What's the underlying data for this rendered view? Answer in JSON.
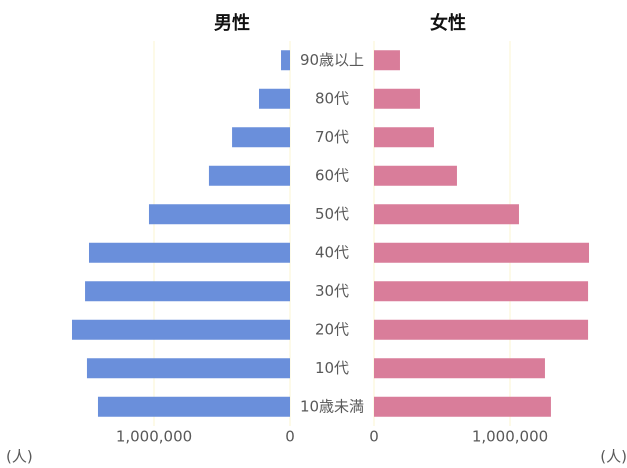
{
  "chart_data": {
    "type": "bar",
    "orientation": "pyramid",
    "categories": [
      "90歳以上",
      "80代",
      "70代",
      "60代",
      "50代",
      "40代",
      "30代",
      "20代",
      "10代",
      "10歳未満"
    ],
    "series": [
      {
        "name": "男性",
        "color": "#6a8fdb",
        "values": [
          66000,
          228000,
          426000,
          596000,
          1037000,
          1478000,
          1507000,
          1603000,
          1493000,
          1412000
        ]
      },
      {
        "name": "女性",
        "color": "#d97d9a",
        "values": [
          191000,
          338000,
          441000,
          610000,
          1066000,
          1581000,
          1574000,
          1574000,
          1257000,
          1301000
        ]
      }
    ],
    "xlim": [
      0,
      1700000
    ],
    "xticks": [
      0,
      {
        "value": 1000000,
        "label": "1,000,000"
      }
    ],
    "x_label": "(人)",
    "grid": true
  }
}
